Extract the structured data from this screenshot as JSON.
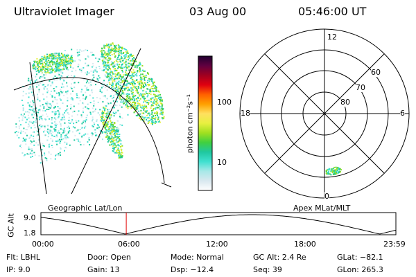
{
  "header": {
    "instrument": "Ultraviolet Imager",
    "date": "03 Aug 00",
    "time": "05:46:00 UT"
  },
  "colorbar": {
    "unit_label": "photon cm⁻²s⁻¹",
    "ticks": [
      "100",
      "10"
    ]
  },
  "polar_plot": {
    "mlt_labels": [
      "12",
      "18",
      "6",
      "0"
    ],
    "lat_labels": [
      "60",
      "70",
      "80"
    ]
  },
  "map_labels": {
    "left": "Geographic Lat/Lon",
    "right": "Apex MLat/MLT"
  },
  "altitude_plot": {
    "ylabel": "GC Alt",
    "yticks": [
      "9.0",
      "1.8"
    ],
    "xticks": [
      "00:00",
      "06:00",
      "12:00",
      "18:00",
      "23:59"
    ],
    "current_time_hours": 5.77
  },
  "info": {
    "flt": "Flt: LBHL",
    "ip": "IP:  9.0",
    "door": "Door: Open",
    "gain": "Gain: 13",
    "mode": "Mode: Normal",
    "dsp": "Dsp:  −12.4",
    "gcalt": "GC Alt: 2.4 Re",
    "seq": "Seq: 39",
    "glat": "GLat: −82.1",
    "glon": "GLon: 265.3"
  },
  "colors": {
    "marker": "#e00000",
    "colormap": [
      "#ffffff",
      "#d9e8ef",
      "#a8e8e8",
      "#40e0d0",
      "#20c8a0",
      "#40d040",
      "#a0e020",
      "#e8f040",
      "#ffe060",
      "#ffa000",
      "#ff6000",
      "#e00010",
      "#a00020",
      "#600040",
      "#200030"
    ]
  }
}
